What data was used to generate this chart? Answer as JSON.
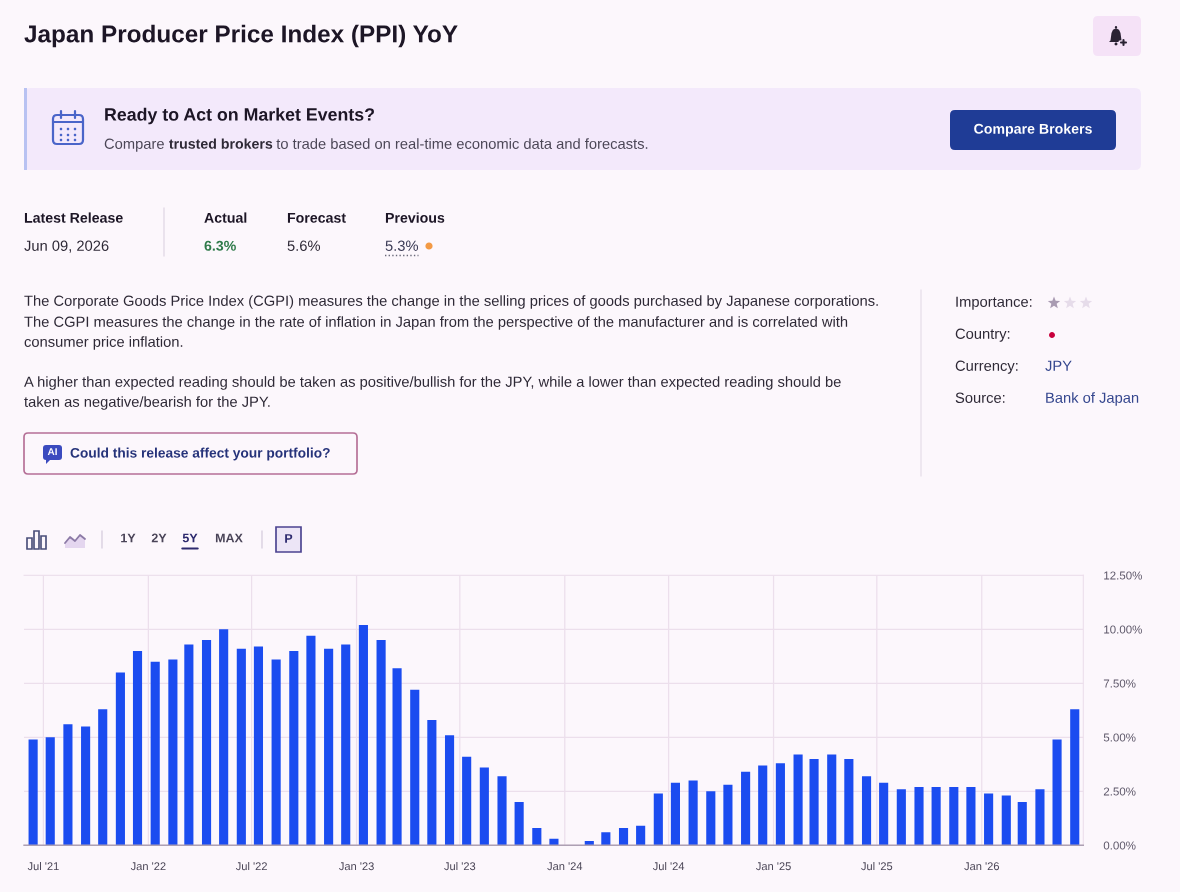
{
  "chart_data": [
    {
      "type": "other",
      "title": "Japan Producer Price Index (PPI) YoY",
      "annotations": [
        "Ready to Act on Market Events?",
        "Compare",
        "trusted brokers",
        "to trade based on real-time economic data and forecasts.",
        "Compare Brokers",
        "Latest Release",
        "Jun 09, 2026",
        "Actual",
        "6.3%",
        "Forecast",
        "5.6%",
        "Previous",
        "5.3%",
        "The Corporate Goods Price Index (CGPI) measures the change in the selling prices of goods purchased by Japanese corporations.",
        "The CGPI measures the change in the rate of inflation in Japan from the perspective of the manufacturer and is correlated with",
        "consumer price inflation.",
        "A higher than expected reading should be taken as positive/bullish for the JPY, while a lower than expected reading should be",
        "taken as negative/bearish for the JPY.",
        "AI",
        "Could this release affect your portfolio?",
        "Importance:",
        "Country:",
        "Currency:",
        "JPY",
        "Source:",
        "Bank of Japan",
        "1Y",
        "2Y",
        "5Y",
        "MAX",
        "P"
      ]
    },
    {
      "type": "bar",
      "color": "#1b4cf0",
      "x": [
        "2021-06-13",
        "2021-07-13",
        "2021-08-13",
        "2021-09-13",
        "2021-10-13",
        "2021-11-13",
        "2021-12-13",
        "2022-01-13",
        "2022-02-13",
        "2022-03-13",
        "2022-04-13",
        "2022-05-13",
        "2022-06-13",
        "2022-07-13",
        "2022-08-13",
        "2022-09-13",
        "2022-10-13",
        "2022-11-13",
        "2022-12-13",
        "2023-01-13",
        "2023-02-13",
        "2023-03-13",
        "2023-04-13",
        "2023-05-13",
        "2023-06-13",
        "2023-07-13",
        "2023-08-13",
        "2023-09-13",
        "2023-10-13",
        "2023-11-13",
        "2023-12-13",
        "2024-01-13",
        "2024-02-13",
        "2024-03-13",
        "2024-04-13",
        "2024-05-13",
        "2024-06-13",
        "2024-07-13",
        "2024-08-13",
        "2024-09-13",
        "2024-10-13",
        "2024-11-13",
        "2024-12-13",
        "2025-01-13",
        "2025-02-13",
        "2025-03-13",
        "2025-04-13",
        "2025-05-13",
        "2025-06-13",
        "2025-07-13",
        "2025-08-13",
        "2025-09-13",
        "2025-10-13",
        "2025-11-13",
        "2025-12-13",
        "2026-01-13",
        "2026-02-13",
        "2026-03-13",
        "2026-04-13",
        "2026-05-13",
        "2026-06-13"
      ],
      "values": [
        4.9,
        5.0,
        5.6,
        5.5,
        6.3,
        8.0,
        9.0,
        8.5,
        8.6,
        9.3,
        9.5,
        10.0,
        9.1,
        9.2,
        8.6,
        9.0,
        9.7,
        9.1,
        9.3,
        10.2,
        9.5,
        8.2,
        7.2,
        5.8,
        5.1,
        4.1,
        3.6,
        3.2,
        2.0,
        0.8,
        0.3,
        0.0,
        0.2,
        0.6,
        0.8,
        0.9,
        2.4,
        2.9,
        3.0,
        2.5,
        2.8,
        3.4,
        3.7,
        3.8,
        4.2,
        4.0,
        4.2,
        4.0,
        3.2,
        2.9,
        2.6,
        2.7,
        2.7,
        2.7,
        2.7,
        2.4,
        2.3,
        2.0,
        2.6,
        4.9,
        6.3
      ],
      "xlim": [
        "2021-05-28",
        "2026-06-28"
      ],
      "xticks": [
        {
          "value": "2021-07",
          "label": "Jul '21"
        },
        {
          "value": "2022-01",
          "label": "Jan '22"
        },
        {
          "value": "2022-07",
          "label": "Jul '22"
        },
        {
          "value": "2023-01",
          "label": "Jan '23"
        },
        {
          "value": "2023-07",
          "label": "Jul '23"
        },
        {
          "value": "2024-01",
          "label": "Jan '24"
        },
        {
          "value": "2024-07",
          "label": "Jul '24"
        },
        {
          "value": "2025-01",
          "label": "Jan '25"
        },
        {
          "value": "2025-07",
          "label": "Jul '25"
        },
        {
          "value": "2026-01",
          "label": "Jan '26"
        }
      ],
      "ylim": [
        0,
        12.5
      ],
      "yticks": [
        {
          "value": 0,
          "label": "0.00%"
        },
        {
          "value": 2.5,
          "label": "2.50%"
        },
        {
          "value": 5,
          "label": "5.00%"
        },
        {
          "value": 7.5,
          "label": "7.50%"
        },
        {
          "value": 10,
          "label": "10.00%"
        },
        {
          "value": 12.5,
          "label": "12.50%"
        }
      ],
      "grid": true
    }
  ]
}
